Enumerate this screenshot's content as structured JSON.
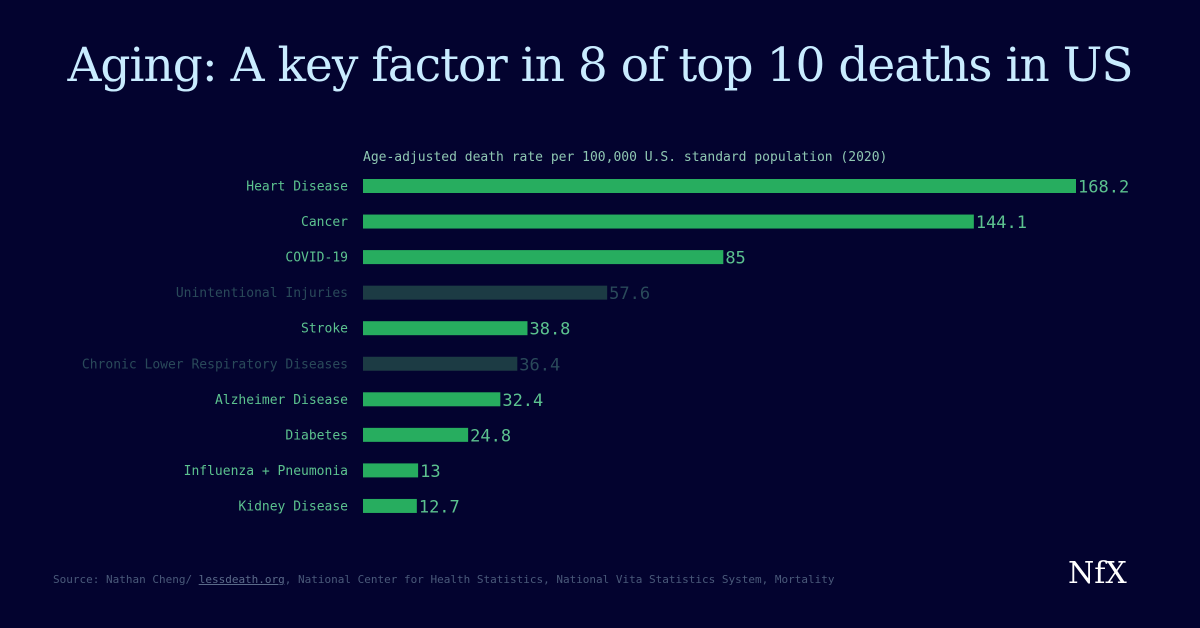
{
  "chart_data": {
    "type": "bar",
    "orientation": "horizontal",
    "title": "Aging: A key factor in 8 of top 10 deaths in US",
    "subtitle": "Age-adjusted death rate per 100,000 U.S. standard population (2020)",
    "categories": [
      "Heart Disease",
      "Cancer",
      "COVID-19",
      "Unintentional Injuries",
      "Stroke",
      "Chronic Lower Respiratory Diseases",
      "Alzheimer Disease",
      "Diabetes",
      "Influenza + Pneumonia",
      "Kidney Disease"
    ],
    "values": [
      168.2,
      144.1,
      85,
      57.6,
      38.8,
      36.4,
      32.4,
      24.8,
      13,
      12.7
    ],
    "labels": [
      "168.2",
      "144.1",
      "85",
      "57.6",
      "38.8",
      "36.4",
      "32.4",
      "24.8",
      "13",
      "12.7"
    ],
    "aging_related": [
      true,
      true,
      true,
      false,
      true,
      false,
      true,
      true,
      true,
      true
    ],
    "xlim": [
      0,
      168.2
    ],
    "grid": false
  },
  "colors": {
    "background": "#03032f",
    "highlight": "#27ad5f",
    "muted": "#1c3b44",
    "label": "#5cc28f",
    "muted_label": "#2a4a5a"
  },
  "source": {
    "prefix": "Source: Nathan Cheng/ ",
    "link": "lessdeath.org",
    "suffix": ", National Center for Health Statistics, National Vita Statistics System, Mortality"
  },
  "logo": "NfX"
}
